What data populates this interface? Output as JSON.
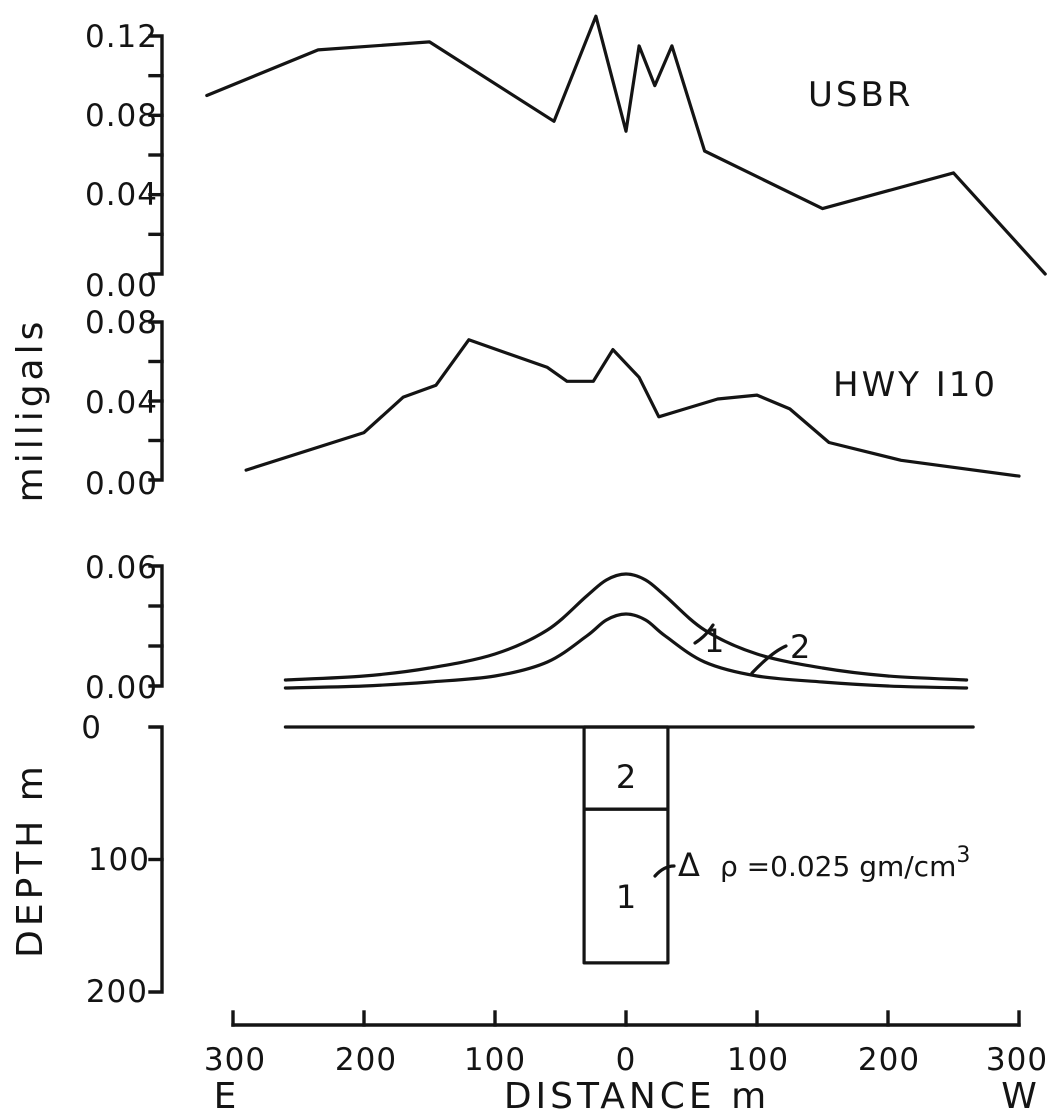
{
  "chart_data": [
    {
      "type": "line",
      "series": [
        {
          "name": "USBR",
          "x": [
            -320,
            -235,
            -150,
            -55,
            -23,
            0,
            10,
            22,
            35,
            60,
            150,
            250,
            320
          ],
          "y": [
            0.09,
            0.113,
            0.117,
            0.077,
            0.13,
            0.072,
            0.115,
            0.095,
            0.115,
            0.062,
            0.033,
            0.051,
            0.0
          ]
        }
      ],
      "yticks": [
        "0.12",
        "0.08",
        "0.04",
        "0.00"
      ],
      "ylim": [
        0,
        0.12
      ],
      "xlim": [
        -320,
        320
      ]
    },
    {
      "type": "line",
      "series": [
        {
          "name": "HWY I10",
          "x": [
            -290,
            -200,
            -170,
            -145,
            -120,
            -60,
            -45,
            -25,
            -10,
            10,
            25,
            45,
            70,
            100,
            125,
            155,
            210,
            300
          ],
          "y": [
            0.005,
            0.024,
            0.042,
            0.048,
            0.071,
            0.057,
            0.05,
            0.05,
            0.066,
            0.052,
            0.032,
            0.036,
            0.041,
            0.043,
            0.036,
            0.019,
            0.01,
            0.002
          ]
        }
      ],
      "yticks": [
        "0.08",
        "0.04",
        "0.00"
      ],
      "ylim": [
        0,
        0.08
      ],
      "xlim": [
        -320,
        320
      ]
    },
    {
      "type": "line",
      "series": [
        {
          "name": "1",
          "x": [
            -260,
            -200,
            -150,
            -100,
            -60,
            -30,
            -15,
            0,
            15,
            30,
            60,
            100,
            150,
            200,
            260
          ],
          "y": [
            0.003,
            0.005,
            0.009,
            0.016,
            0.028,
            0.045,
            0.053,
            0.056,
            0.053,
            0.045,
            0.028,
            0.016,
            0.009,
            0.005,
            0.003
          ]
        },
        {
          "name": "2",
          "x": [
            -260,
            -200,
            -150,
            -100,
            -60,
            -30,
            -15,
            0,
            15,
            30,
            60,
            100,
            150,
            200,
            260
          ],
          "y": [
            -0.001,
            0.0,
            0.002,
            0.005,
            0.012,
            0.025,
            0.033,
            0.036,
            0.033,
            0.025,
            0.012,
            0.005,
            0.002,
            0.0,
            -0.001
          ]
        }
      ],
      "yticks": [
        "0.06",
        "0.00"
      ],
      "ylim": [
        0,
        0.06
      ],
      "xlim": [
        -320,
        320
      ]
    },
    {
      "type": "diagram",
      "yticks": [
        "0",
        "100",
        "200"
      ],
      "ylim": [
        0,
        200
      ],
      "ground_x": [
        -260,
        265
      ],
      "blocks": [
        {
          "label": "2",
          "x": [
            -32,
            32
          ],
          "depth": [
            0,
            62
          ]
        },
        {
          "label": "1",
          "x": [
            -32,
            32
          ],
          "depth": [
            62,
            178
          ]
        }
      ],
      "annotation": "Δ ρ =0.025 gm/cm3"
    }
  ],
  "text": {
    "ylabel_top": "milligals",
    "ylabel_bottom": "DEPTH m",
    "xlabel": "DISTANCE m",
    "xticks": [
      "300",
      "200",
      "100",
      "0",
      "100",
      "200",
      "300"
    ],
    "left_end": "E",
    "right_end": "W",
    "usbr": "USBR",
    "hwy": "HWY I10",
    "curve1": "1",
    "curve2": "2",
    "block1": "1",
    "block2": "2",
    "delta": "Δ",
    "rho_text": "ρ =0.025 gm/cm",
    "rho_sup": "3"
  }
}
